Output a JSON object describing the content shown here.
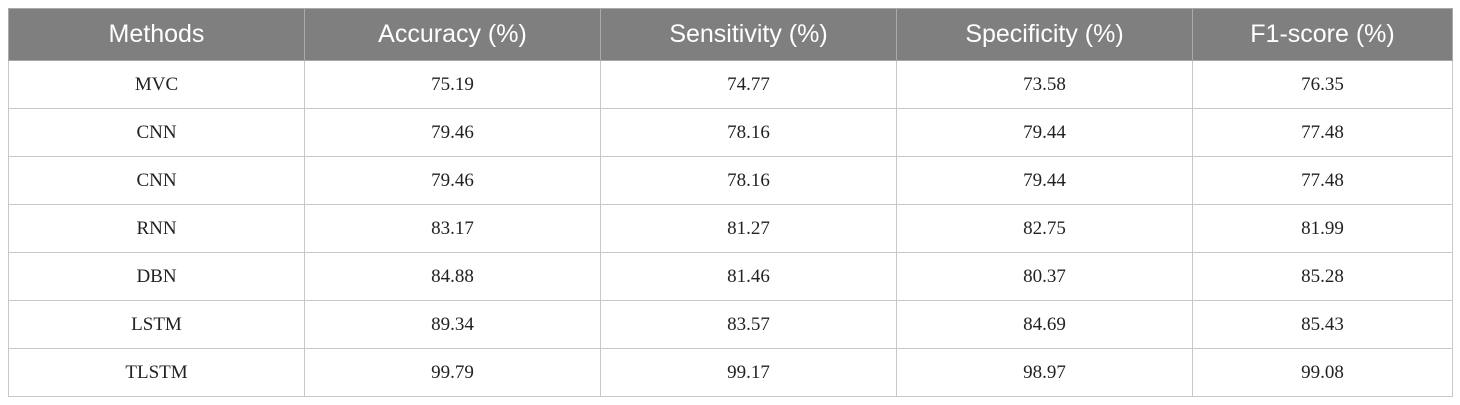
{
  "table": {
    "headers": [
      "Methods",
      "Accuracy (%)",
      "Sensitivity (%)",
      "Specificity (%)",
      "F1-score (%)"
    ],
    "rows": [
      [
        "MVC",
        "75.19",
        "74.77",
        "73.58",
        "76.35"
      ],
      [
        "CNN",
        "79.46",
        "78.16",
        "79.44",
        "77.48"
      ],
      [
        "CNN",
        "79.46",
        "78.16",
        "79.44",
        "77.48"
      ],
      [
        "RNN",
        "83.17",
        "81.27",
        "82.75",
        "81.99"
      ],
      [
        "DBN",
        "84.88",
        "81.46",
        "80.37",
        "85.28"
      ],
      [
        "LSTM",
        "89.34",
        "83.57",
        "84.69",
        "85.43"
      ],
      [
        "TLSTM",
        "99.79",
        "99.17",
        "98.97",
        "99.08"
      ]
    ]
  }
}
